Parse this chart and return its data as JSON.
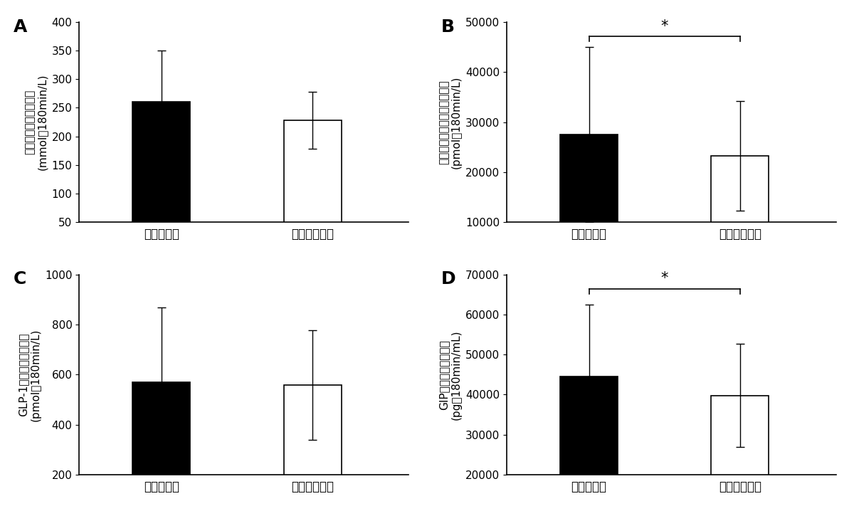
{
  "panels": [
    {
      "label": "A",
      "ylabel_line1": "血糖　上昇曲線下面積",
      "ylabel_line2": "(mmol・180min/L)",
      "categories": [
        "和嘱喀条件",
        "非和嘱喀条件"
      ],
      "values": [
        260,
        228
      ],
      "errors": [
        90,
        50
      ],
      "ylim": [
        50,
        400
      ],
      "yticks": [
        50,
        100,
        150,
        200,
        250,
        300,
        350,
        400
      ],
      "bar_colors": [
        "black",
        "white"
      ],
      "bar_edgecolors": [
        "black",
        "black"
      ],
      "significance": null
    },
    {
      "label": "B",
      "ylabel_line1": "インスリン　上昇曲線下面積",
      "ylabel_line2": "(pmol・180min/L)",
      "categories": [
        "和嘱喀条件",
        "非和嘱喀条件"
      ],
      "values": [
        27500,
        23200
      ],
      "errors": [
        17500,
        11000
      ],
      "ylim": [
        10000,
        50000
      ],
      "yticks": [
        10000,
        20000,
        30000,
        40000,
        50000
      ],
      "bar_colors": [
        "black",
        "white"
      ],
      "bar_edgecolors": [
        "black",
        "black"
      ],
      "significance": "*"
    },
    {
      "label": "C",
      "ylabel_line1": "GLP-1　上昇曲線下面積",
      "ylabel_line2": "(pmol・180min/L)",
      "categories": [
        "和嘱喀条件",
        "非和嘱喀条件"
      ],
      "values": [
        570,
        558
      ],
      "errors": [
        300,
        220
      ],
      "ylim": [
        200,
        1000
      ],
      "yticks": [
        200,
        400,
        600,
        800,
        1000
      ],
      "bar_colors": [
        "black",
        "white"
      ],
      "bar_edgecolors": [
        "black",
        "black"
      ],
      "significance": null
    },
    {
      "label": "D",
      "ylabel_line1": "GIP　上昇曲線下面積",
      "ylabel_line2": "(pg・180min/mL)",
      "categories": [
        "和嘱喀条件",
        "非和嘱喀条件"
      ],
      "values": [
        44500,
        39800
      ],
      "errors": [
        18000,
        13000
      ],
      "ylim": [
        20000,
        70000
      ],
      "yticks": [
        20000,
        30000,
        40000,
        50000,
        60000,
        70000
      ],
      "bar_colors": [
        "black",
        "white"
      ],
      "bar_edgecolors": [
        "black",
        "black"
      ],
      "significance": "*"
    }
  ],
  "background_color": "white",
  "panel_label_fontsize": 18,
  "tick_fontsize": 11,
  "ylabel_fontsize": 11,
  "xtick_fontsize": 12,
  "bar_width": 0.42
}
